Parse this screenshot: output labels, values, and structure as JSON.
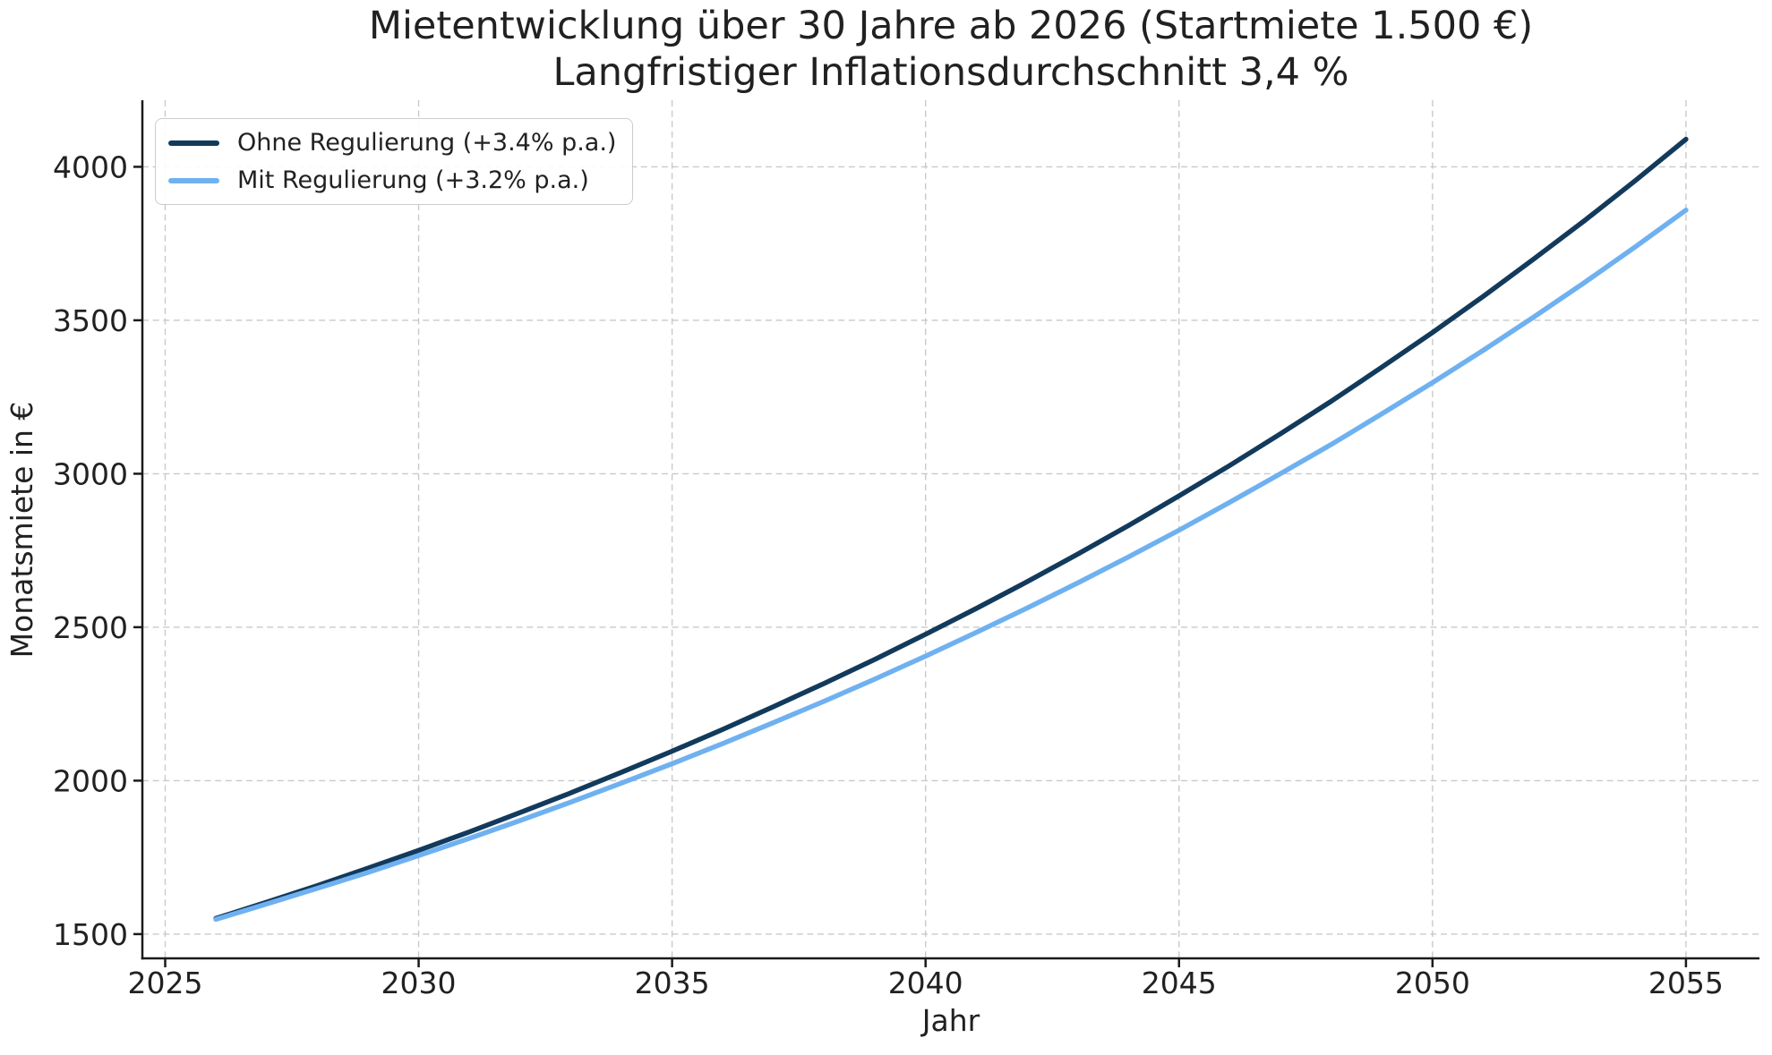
{
  "title": {
    "line1": "Mietentwicklung über 30 Jahre ab 2026 (Startmiete 1.500 €)",
    "line2": "Langfristiger Inflationsdurchschnitt 3,4 %"
  },
  "colors": {
    "series_ohne": "#123a5c",
    "series_mit": "#6fb1f0",
    "grid": "#c9c9c9",
    "spine": "#1a1a1a",
    "text": "#212121",
    "legend_border": "#cccccc",
    "background": "#ffffff"
  },
  "chart_data": {
    "type": "line",
    "title_line1": "Mietentwicklung über 30 Jahre ab 2026 (Startmiete 1.500 €)",
    "title_line2": "Langfristiger Inflationsdurchschnitt 3,4 %",
    "xlabel": "Jahr",
    "ylabel": "Monatsmiete in €",
    "x": [
      2026,
      2027,
      2028,
      2029,
      2030,
      2031,
      2032,
      2033,
      2034,
      2035,
      2036,
      2037,
      2038,
      2039,
      2040,
      2041,
      2042,
      2043,
      2044,
      2045,
      2046,
      2047,
      2048,
      2049,
      2050,
      2051,
      2052,
      2053,
      2054,
      2055
    ],
    "series": [
      {
        "name": "Ohne Regulierung (+3.4% p.a.)",
        "color": "#123a5c",
        "values": [
          1551,
          1604,
          1658,
          1715,
          1773,
          1833,
          1896,
          1960,
          2027,
          2096,
          2167,
          2241,
          2317,
          2395,
          2477,
          2561,
          2648,
          2738,
          2831,
          2928,
          3027,
          3130,
          3236,
          3347,
          3460,
          3578,
          3700,
          3825,
          3955,
          4090
        ]
      },
      {
        "name": "Mit Regulierung (+3.2% p.a.)",
        "color": "#6fb1f0",
        "values": [
          1548,
          1598,
          1649,
          1701,
          1756,
          1812,
          1870,
          1930,
          1992,
          2055,
          2121,
          2189,
          2259,
          2331,
          2406,
          2483,
          2562,
          2644,
          2729,
          2816,
          2907,
          3000,
          3095,
          3195,
          3297,
          3402,
          3511,
          3623,
          3739,
          3859
        ]
      }
    ],
    "xticks": [
      2025,
      2030,
      2035,
      2040,
      2045,
      2050,
      2055
    ],
    "yticks": [
      1500,
      2000,
      2500,
      3000,
      3500,
      4000
    ],
    "xlim": [
      2024.55,
      2056.45
    ],
    "ylim": [
      1421,
      4217
    ],
    "grid": true,
    "grid_style": "dashed",
    "legend_position": "upper left"
  }
}
